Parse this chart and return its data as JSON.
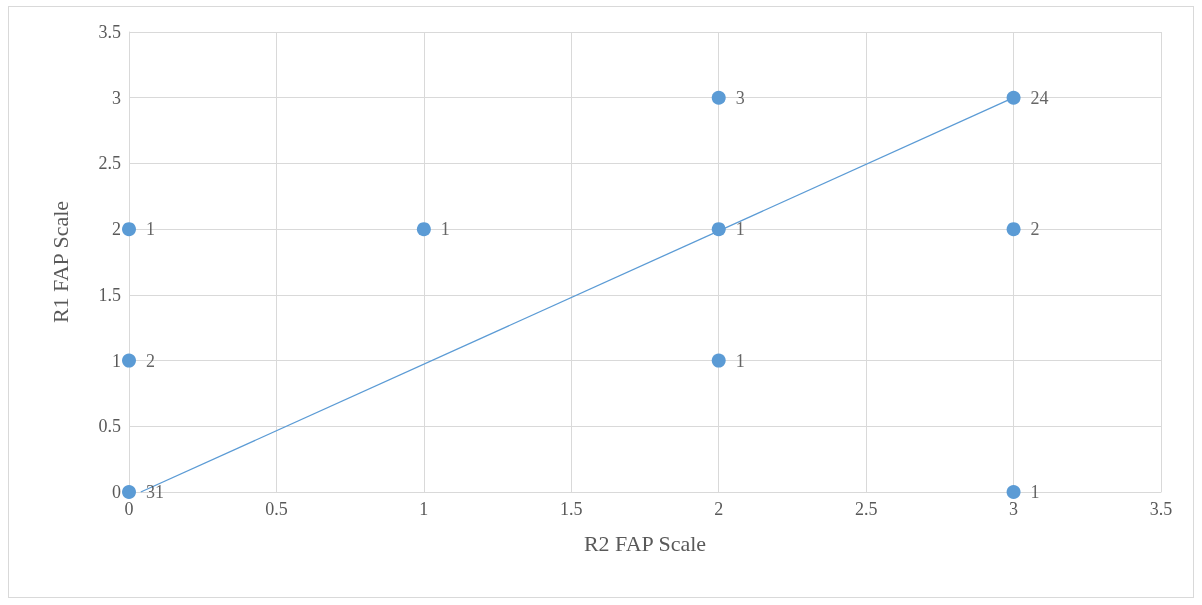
{
  "chart_data": {
    "type": "scatter",
    "xlabel": "R2 FAP Scale",
    "ylabel": "R1 FAP Scale",
    "xlim": [
      0,
      3.5
    ],
    "ylim": [
      0,
      3.5
    ],
    "xticks": [
      0,
      0.5,
      1,
      1.5,
      2,
      2.5,
      3,
      3.5
    ],
    "yticks": [
      0,
      0.5,
      1,
      1.5,
      2,
      2.5,
      3,
      3.5
    ],
    "grid": true,
    "marker": "circle",
    "annotations": [
      {
        "text": "31",
        "x": 0,
        "y": 0
      },
      {
        "text": "2",
        "x": 0,
        "y": 1
      },
      {
        "text": "1",
        "x": 0,
        "y": 2
      },
      {
        "text": "1",
        "x": 1,
        "y": 2
      },
      {
        "text": "3",
        "x": 2,
        "y": 3
      },
      {
        "text": "1",
        "x": 2,
        "y": 2
      },
      {
        "text": "1",
        "x": 2,
        "y": 1
      },
      {
        "text": "24",
        "x": 3,
        "y": 3
      },
      {
        "text": "2",
        "x": 3,
        "y": 2
      },
      {
        "text": "1",
        "x": 3,
        "y": 0
      }
    ],
    "series": [
      {
        "color": "#5b9bd5",
        "x": [
          0,
          0,
          0,
          1,
          2,
          2,
          2,
          3,
          3,
          3
        ],
        "values": [
          0,
          1,
          2,
          2,
          3,
          2,
          1,
          3,
          2,
          0
        ]
      },
      {
        "type": "line",
        "color": "#5b9bd5",
        "marker": "none",
        "x": [
          0.04,
          3
        ],
        "values": [
          0,
          3
        ]
      }
    ]
  }
}
